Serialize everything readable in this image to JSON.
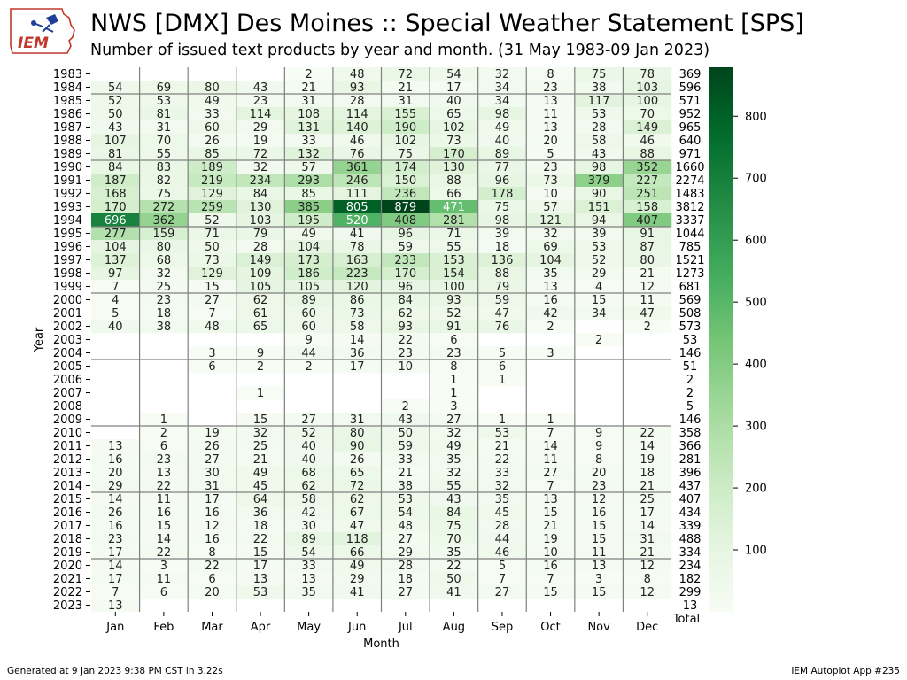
{
  "header": {
    "title": "NWS [DMX] Des Moines :: Special Weather Statement [SPS]",
    "subtitle": "Number of issued text products by year and month. (31 May 1983-09 Jan 2023)",
    "logo_text": "IEM"
  },
  "footer": {
    "generated": "Generated at 9 Jan 2023 9:38 PM CST in 3.22s",
    "app": "IEM Autoplot App #235"
  },
  "chart_data": {
    "type": "heatmap",
    "title": "NWS [DMX] Des Moines :: Special Weather Statement [SPS]",
    "subtitle": "Number of issued text products by year and month. (31 May 1983-09 Jan 2023)",
    "xlabel": "Month",
    "ylabel": "Year",
    "total_label": "Total",
    "months": [
      "Jan",
      "Feb",
      "Mar",
      "Apr",
      "May",
      "Jun",
      "Jul",
      "Aug",
      "Sep",
      "Oct",
      "Nov",
      "Dec"
    ],
    "years": [
      1983,
      1984,
      1985,
      1986,
      1987,
      1988,
      1989,
      1990,
      1991,
      1992,
      1993,
      1994,
      1995,
      1996,
      1997,
      1998,
      1999,
      2000,
      2001,
      2002,
      2003,
      2004,
      2005,
      2006,
      2007,
      2008,
      2009,
      2010,
      2011,
      2012,
      2013,
      2014,
      2015,
      2016,
      2017,
      2018,
      2019,
      2020,
      2021,
      2022,
      2023
    ],
    "values": [
      [
        null,
        null,
        null,
        null,
        2,
        48,
        72,
        54,
        32,
        8,
        75,
        78
      ],
      [
        54,
        69,
        80,
        43,
        21,
        93,
        21,
        17,
        34,
        23,
        38,
        103
      ],
      [
        52,
        53,
        49,
        23,
        31,
        28,
        31,
        40,
        34,
        13,
        117,
        100
      ],
      [
        50,
        81,
        33,
        114,
        108,
        114,
        155,
        65,
        98,
        11,
        53,
        70
      ],
      [
        43,
        31,
        60,
        29,
        131,
        140,
        190,
        102,
        49,
        13,
        28,
        149
      ],
      [
        107,
        70,
        26,
        19,
        33,
        46,
        102,
        73,
        40,
        20,
        58,
        46
      ],
      [
        81,
        55,
        85,
        72,
        132,
        76,
        75,
        170,
        89,
        5,
        43,
        88
      ],
      [
        84,
        83,
        189,
        32,
        57,
        361,
        174,
        130,
        77,
        23,
        98,
        352
      ],
      [
        187,
        82,
        219,
        234,
        293,
        246,
        150,
        88,
        96,
        73,
        379,
        227
      ],
      [
        168,
        75,
        129,
        84,
        85,
        111,
        236,
        66,
        178,
        10,
        90,
        251
      ],
      [
        170,
        272,
        259,
        130,
        385,
        805,
        879,
        471,
        75,
        57,
        151,
        158
      ],
      [
        696,
        362,
        52,
        103,
        195,
        520,
        408,
        281,
        98,
        121,
        94,
        407
      ],
      [
        277,
        159,
        71,
        79,
        49,
        41,
        96,
        71,
        39,
        32,
        39,
        91
      ],
      [
        104,
        80,
        50,
        28,
        104,
        78,
        59,
        55,
        18,
        69,
        53,
        87
      ],
      [
        137,
        68,
        73,
        149,
        173,
        163,
        233,
        153,
        136,
        104,
        52,
        80
      ],
      [
        97,
        32,
        129,
        109,
        186,
        223,
        170,
        154,
        88,
        35,
        29,
        21
      ],
      [
        7,
        25,
        15,
        105,
        105,
        120,
        96,
        100,
        79,
        13,
        4,
        12
      ],
      [
        4,
        23,
        27,
        62,
        89,
        86,
        84,
        93,
        59,
        16,
        15,
        11
      ],
      [
        5,
        18,
        7,
        61,
        60,
        73,
        62,
        52,
        47,
        42,
        34,
        47
      ],
      [
        40,
        38,
        48,
        65,
        60,
        58,
        93,
        91,
        76,
        2,
        null,
        2
      ],
      [
        null,
        null,
        null,
        null,
        9,
        14,
        22,
        6,
        null,
        null,
        2,
        null
      ],
      [
        null,
        null,
        3,
        9,
        44,
        36,
        23,
        23,
        5,
        3,
        null,
        null
      ],
      [
        null,
        null,
        6,
        2,
        2,
        17,
        10,
        8,
        6,
        null,
        null,
        null
      ],
      [
        null,
        null,
        null,
        null,
        null,
        null,
        null,
        1,
        1,
        null,
        null,
        null
      ],
      [
        null,
        null,
        null,
        1,
        null,
        null,
        null,
        1,
        null,
        null,
        null,
        null
      ],
      [
        null,
        null,
        null,
        null,
        null,
        null,
        2,
        3,
        null,
        null,
        null,
        null
      ],
      [
        null,
        1,
        null,
        15,
        27,
        31,
        43,
        27,
        1,
        1,
        null,
        null
      ],
      [
        null,
        2,
        19,
        32,
        52,
        80,
        50,
        32,
        53,
        7,
        9,
        22
      ],
      [
        13,
        6,
        26,
        25,
        40,
        90,
        59,
        49,
        21,
        14,
        9,
        14
      ],
      [
        16,
        23,
        27,
        21,
        40,
        26,
        33,
        35,
        22,
        11,
        8,
        19
      ],
      [
        20,
        13,
        30,
        49,
        68,
        65,
        21,
        32,
        33,
        27,
        20,
        18
      ],
      [
        29,
        22,
        31,
        45,
        62,
        72,
        38,
        55,
        32,
        7,
        23,
        21
      ],
      [
        14,
        11,
        17,
        64,
        58,
        62,
        53,
        43,
        35,
        13,
        12,
        25
      ],
      [
        26,
        16,
        16,
        36,
        42,
        67,
        54,
        84,
        45,
        15,
        16,
        17
      ],
      [
        16,
        15,
        12,
        18,
        30,
        47,
        48,
        75,
        28,
        21,
        15,
        14
      ],
      [
        23,
        14,
        16,
        22,
        89,
        118,
        27,
        70,
        44,
        19,
        15,
        31
      ],
      [
        17,
        22,
        8,
        15,
        54,
        66,
        29,
        35,
        46,
        10,
        11,
        21
      ],
      [
        14,
        3,
        22,
        17,
        33,
        49,
        28,
        22,
        5,
        16,
        13,
        12
      ],
      [
        17,
        11,
        6,
        13,
        13,
        29,
        18,
        50,
        7,
        7,
        3,
        8
      ],
      [
        7,
        6,
        20,
        53,
        35,
        41,
        27,
        41,
        27,
        15,
        15,
        12
      ],
      [
        13,
        null,
        null,
        null,
        null,
        null,
        null,
        null,
        null,
        null,
        null,
        null
      ]
    ],
    "totals": [
      369,
      596,
      571,
      952,
      965,
      640,
      971,
      1660,
      2274,
      1483,
      3812,
      3337,
      1044,
      785,
      1521,
      1273,
      681,
      569,
      508,
      573,
      53,
      146,
      51,
      2,
      2,
      5,
      146,
      358,
      366,
      281,
      396,
      437,
      407,
      434,
      339,
      488,
      334,
      234,
      182,
      299,
      13
    ],
    "colorbar": {
      "ticks": [
        100,
        200,
        300,
        400,
        500,
        600,
        700,
        800
      ],
      "range": [
        0,
        879
      ],
      "colormap": "Greens"
    }
  }
}
